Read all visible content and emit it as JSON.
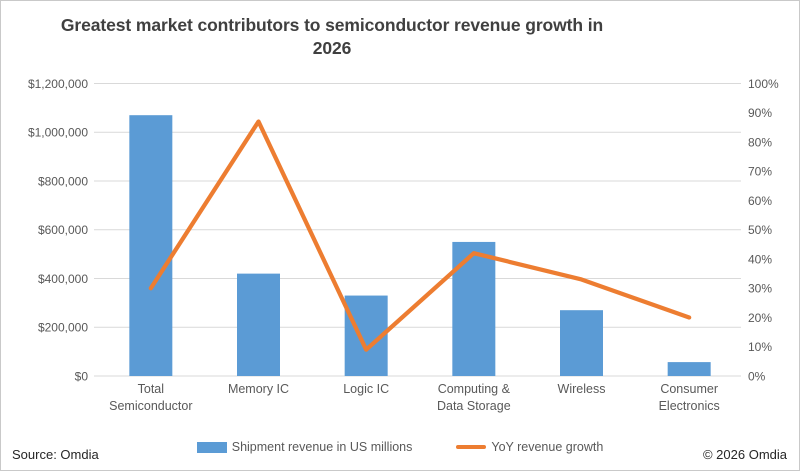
{
  "title": {
    "line1": "Greatest market contributors to semiconductor revenue growth in",
    "line2": "2026"
  },
  "chart_data": {
    "type": "combo-bar-line",
    "categories": [
      "Total Semiconductor",
      "Memory IC",
      "Logic IC",
      "Computing & Data Storage",
      "Wireless",
      "Consumer Electronics"
    ],
    "category_label_lines": [
      [
        "Total",
        "Semiconductor"
      ],
      [
        "Memory IC"
      ],
      [
        "Logic IC"
      ],
      [
        "Computing &",
        "Data Storage"
      ],
      [
        "Wireless"
      ],
      [
        "Consumer",
        "Electronics"
      ]
    ],
    "series": [
      {
        "name": "Shipment revenue in US millions",
        "type": "bar",
        "axis": "left",
        "color": "#5B9BD5",
        "values": [
          1070000,
          420000,
          330000,
          550000,
          270000,
          57000
        ]
      },
      {
        "name": "YoY revenue growth",
        "type": "line",
        "axis": "right",
        "color": "#ED7D31",
        "values": [
          30,
          87,
          9,
          42,
          33,
          20
        ]
      }
    ],
    "left_axis": {
      "min": 0,
      "max": 1200000,
      "step": 200000,
      "tick_labels": [
        "$0",
        "$200,000",
        "$400,000",
        "$600,000",
        "$800,000",
        "$1,000,000",
        "$1,200,000"
      ]
    },
    "right_axis": {
      "min": 0,
      "max": 100,
      "step": 10,
      "unit": "%",
      "tick_labels": [
        "0%",
        "10%",
        "20%",
        "30%",
        "40%",
        "50%",
        "60%",
        "70%",
        "80%",
        "90%",
        "100%"
      ]
    },
    "grid": true,
    "legend_position": "bottom",
    "colors": {
      "gridline": "#D9D9D9",
      "axis_text": "#595959",
      "title_text": "#404040"
    }
  },
  "legend": {
    "bar_label": "Shipment revenue in US millions",
    "line_label": "YoY revenue growth"
  },
  "footer": {
    "source": "Source: Omdia",
    "copyright": "© 2026 Omdia"
  }
}
